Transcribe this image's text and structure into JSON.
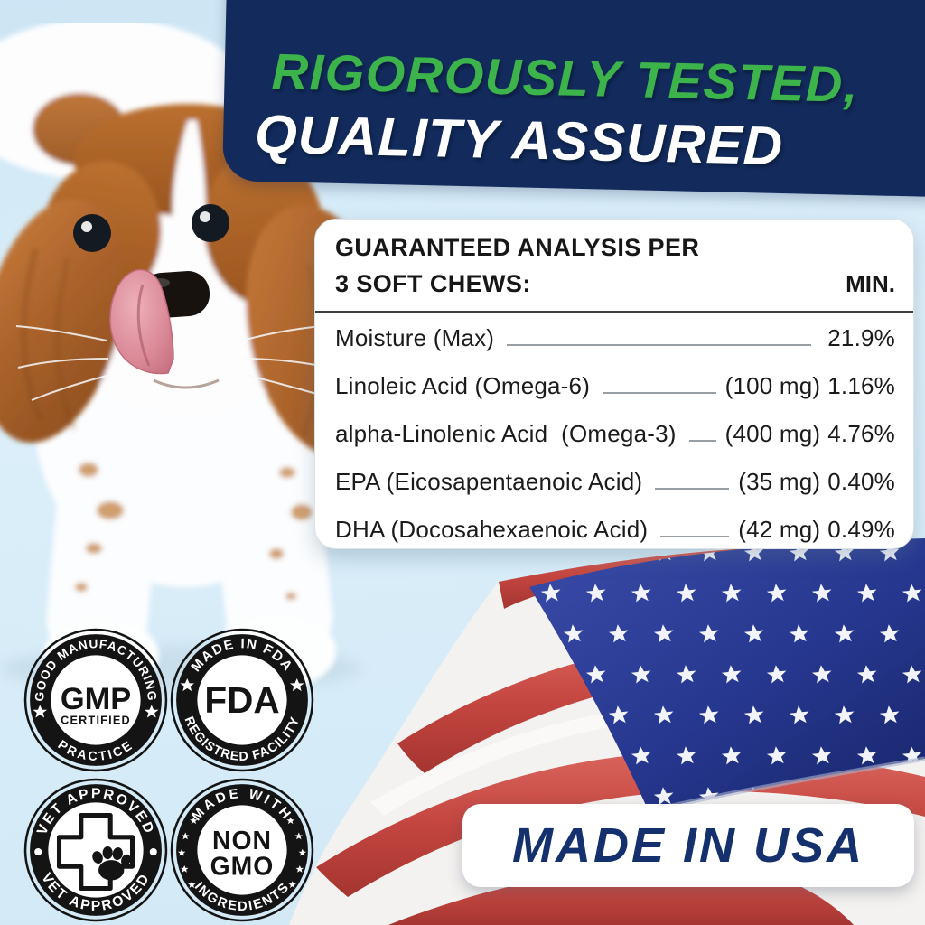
{
  "banner": {
    "line1": "RIGOROUSLY TESTED,",
    "line2": "QUALITY ASSURED"
  },
  "analysis": {
    "heading_line1": "GUARANTEED ANALYSIS PER",
    "heading_line2": "3 SOFT CHEWS:",
    "min_label": "MIN.",
    "rows": [
      {
        "label": "Moisture (Max)",
        "amount": "",
        "value": "21.9%"
      },
      {
        "label": "Linoleic Acid (Omega-6)",
        "amount": "(100 mg)",
        "value": "1.16%"
      },
      {
        "label": "alpha-Linolenic Acid  (Omega-3)",
        "amount": "(400 mg)",
        "value": "4.76%"
      },
      {
        "label": "EPA (Eicosapentaenoic Acid)",
        "amount": "(35 mg)",
        "value": "0.40%"
      },
      {
        "label": "DHA (Docosahexaenoic Acid)",
        "amount": "(42 mg)",
        "value": "0.49%"
      }
    ]
  },
  "badges": {
    "gmp": {
      "arc_top": "GOOD MANUFACTURING",
      "arc_bottom": "PRACTICE",
      "center_main": "GMP",
      "center_sub": "CERTIFIED"
    },
    "fda": {
      "arc_top": "MADE IN FDA",
      "arc_bottom": "REGISTRED FACILITY",
      "center_main": "FDA"
    },
    "vet": {
      "arc_top": "VET APPROVED",
      "arc_bottom": "VET APPROVED"
    },
    "nongmo": {
      "arc_top": "MADE WITH",
      "arc_bottom": "INGREDIENTS",
      "center_main": "NON",
      "center_sub": "GMO"
    }
  },
  "usa_banner": {
    "label": "MADE IN USA"
  },
  "colors": {
    "background": "#d9ecf8",
    "banner_navy": "#122b5c",
    "accent_green": "#3cb34b",
    "usa_text_navy": "#14316e",
    "flag_red": "#c4453f",
    "flag_blue": "#26378f",
    "badge_black": "#141414"
  }
}
